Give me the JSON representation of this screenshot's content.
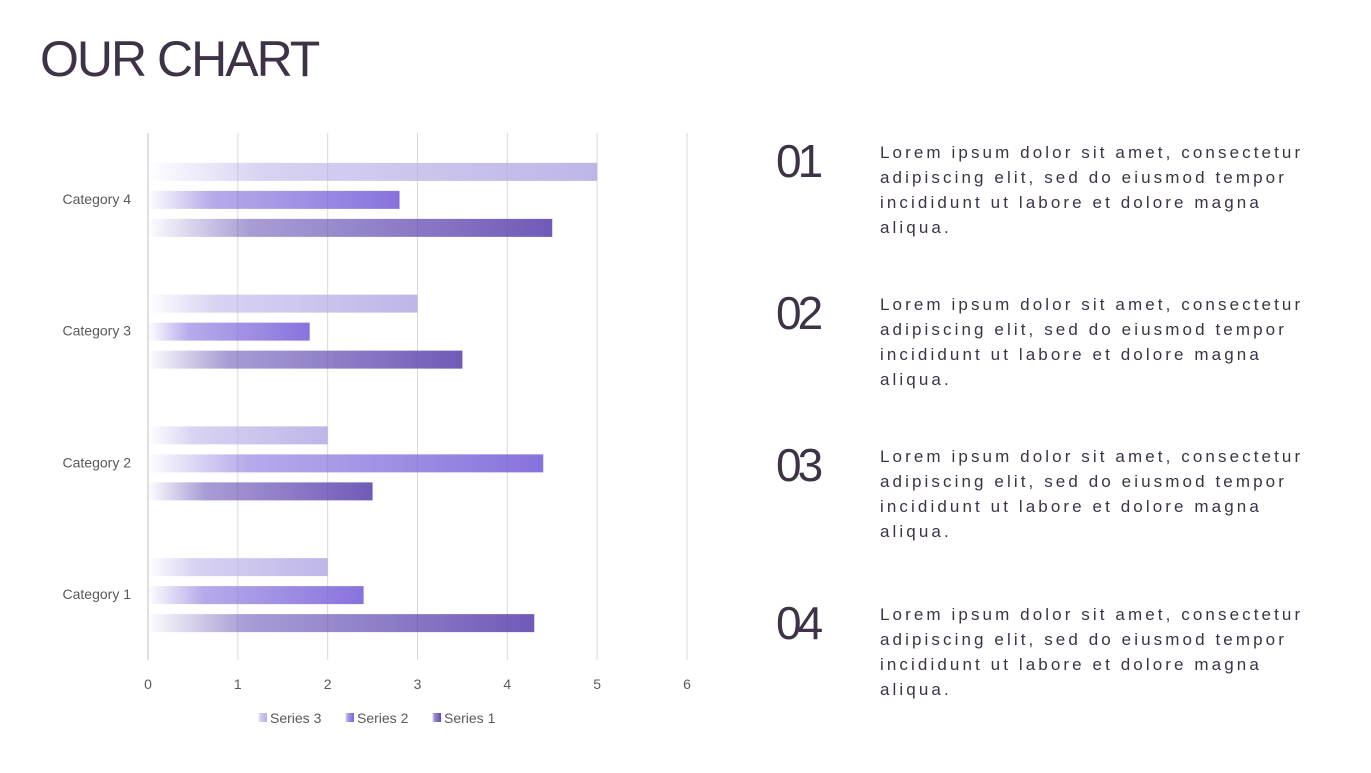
{
  "title": "OUR CHART",
  "chart_data": {
    "type": "bar",
    "orientation": "horizontal",
    "categories": [
      "Category 1",
      "Category 2",
      "Category 3",
      "Category 4"
    ],
    "series": [
      {
        "name": "Series 1",
        "values": [
          4.3,
          2.5,
          3.5,
          4.5
        ],
        "color": "#6049b0"
      },
      {
        "name": "Series 2",
        "values": [
          2.4,
          4.4,
          1.8,
          2.8
        ],
        "color": "#7b63d9"
      },
      {
        "name": "Series 3",
        "values": [
          2,
          2,
          3,
          5
        ],
        "color": "#b6aee6"
      }
    ],
    "xlim": [
      0,
      6
    ],
    "xticks": [
      "0",
      "1",
      "2",
      "3",
      "4",
      "5",
      "6"
    ],
    "grid": true,
    "legend": "bottom",
    "legend_order": [
      "Series 3",
      "Series 2",
      "Series 1"
    ]
  },
  "items": [
    {
      "number": "01",
      "text": "Lorem ipsum dolor sit amet, consectetur adipiscing elit, sed do eiusmod tempor incididunt ut labore et dolore magna aliqua."
    },
    {
      "number": "02",
      "text": "Lorem ipsum dolor sit amet, consectetur adipiscing elit, sed do eiusmod tempor incididunt ut labore et dolore magna aliqua."
    },
    {
      "number": "03",
      "text": "Lorem ipsum dolor sit amet, consectetur adipiscing elit, sed do eiusmod tempor incididunt ut labore et dolore magna aliqua."
    },
    {
      "number": "04",
      "text": "Lorem ipsum dolor sit amet, consectetur adipiscing elit, sed do eiusmod tempor incididunt ut labore et dolore magna aliqua."
    }
  ]
}
